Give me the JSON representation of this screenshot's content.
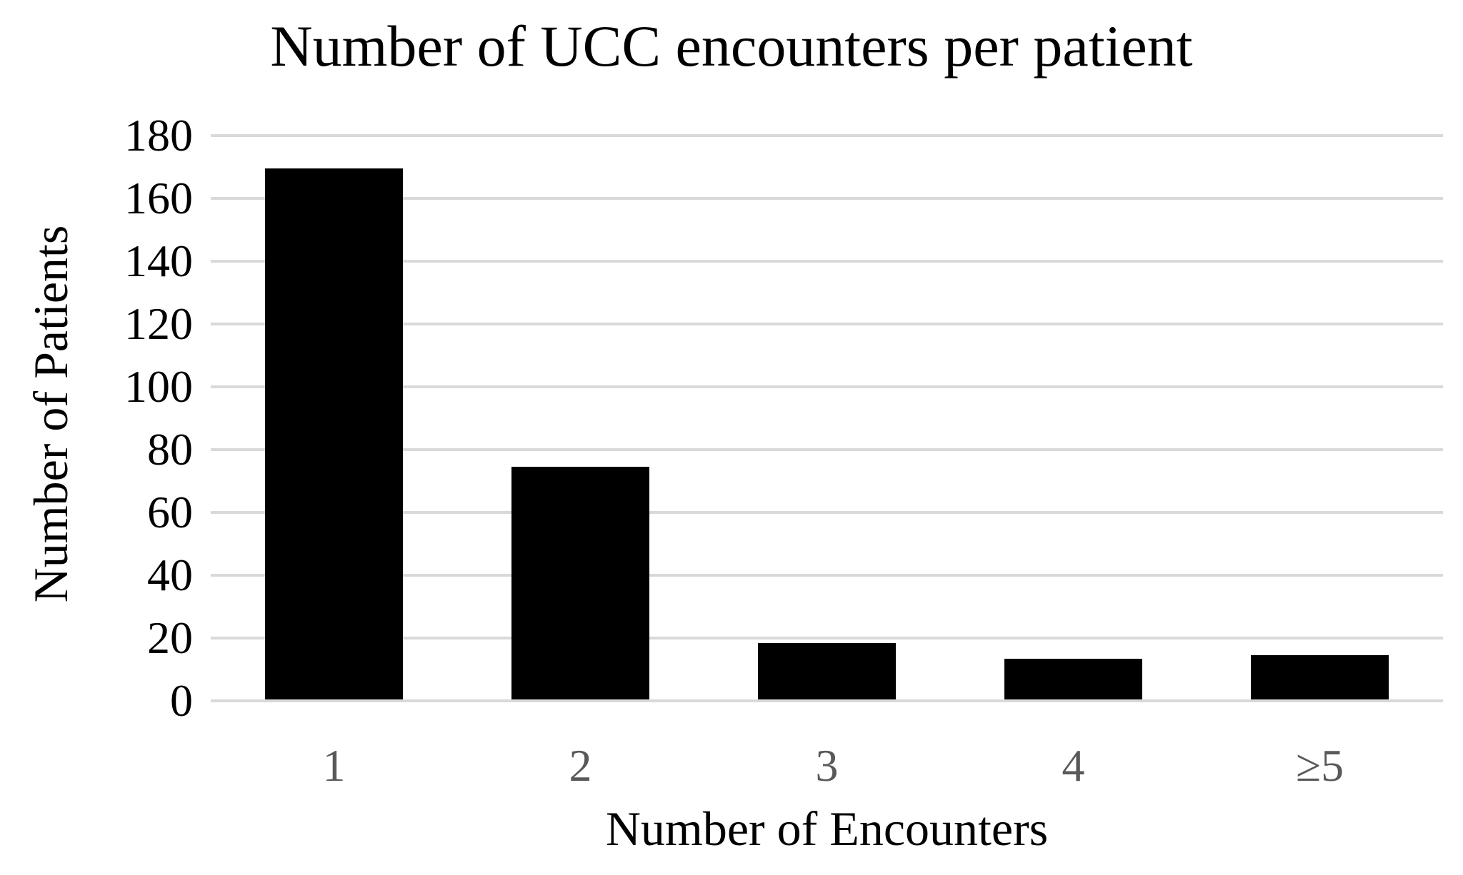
{
  "figure": {
    "background": "#ffffff"
  },
  "chart_data": {
    "type": "bar",
    "title": "Number of UCC encounters per patient",
    "xlabel": "Number of Encounters",
    "ylabel": "Number of Patients",
    "categories": [
      "1",
      "2",
      "3",
      "4",
      "≥5"
    ],
    "values": [
      169,
      74,
      18,
      13,
      14
    ],
    "series": [
      {
        "name": "Number of Patients",
        "values": [
          169,
          74,
          18,
          13,
          14
        ]
      }
    ],
    "ylim": [
      0,
      180
    ],
    "yticks": [
      0,
      20,
      40,
      60,
      80,
      100,
      120,
      140,
      160,
      180
    ],
    "grid": true,
    "legend": false,
    "bar_color": "#000000",
    "gridline_color": "#d9d9d9",
    "xtick_color": "#595959",
    "ytick_color": "#000000",
    "title_color": "#000000"
  }
}
